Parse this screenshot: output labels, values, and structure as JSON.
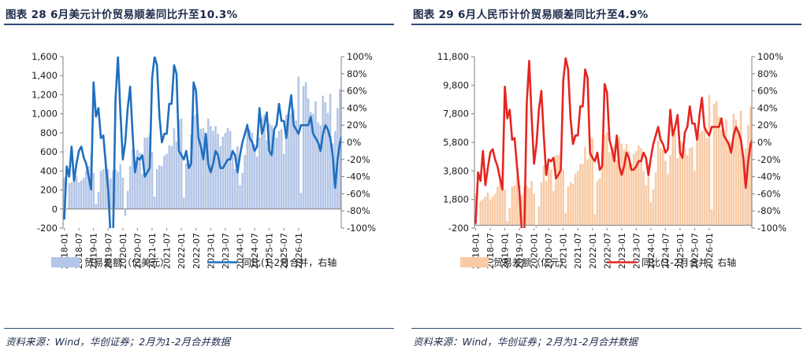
{
  "left": {
    "title": "图表 28 6月美元计价贸易顺差同比升至10.3%",
    "source": "资料来源：Wind，华创证券；2月为1-2月合并数据",
    "colors": {
      "bar": "#b4c6e7",
      "line": "#1f6fbf"
    }
  },
  "right": {
    "title": "图表 29 6月人民币计价贸易顺差同比升至4.9%",
    "source": "资料来源：Wind，华创证券；2月为1-2月合并数据",
    "colors": {
      "bar": "#f8cba6",
      "line": "#e52520"
    }
  },
  "chart_data": [
    {
      "type": "bar+line",
      "x_ticks": [
        "2018-01",
        "2018-07",
        "2019-01",
        "2019-07",
        "2020-01",
        "2020-07",
        "2021-01",
        "2021-07",
        "2022-01",
        "2022-07",
        "2023-01",
        "2023-07",
        "2024-01",
        "2024-07",
        "2025-01",
        "2025-07",
        "2026-01"
      ],
      "y_left": {
        "ticks": [
          "-200",
          "0",
          "200",
          "400",
          "600",
          "800",
          "1,000",
          "1,200",
          "1,400",
          "1,600"
        ],
        "range": [
          -200,
          1600
        ]
      },
      "y_right": {
        "ticks": [
          "-100%",
          "-80%",
          "-60%",
          "-40%",
          "-20%",
          "0%",
          "20%",
          "40%",
          "60%",
          "80%",
          "100%"
        ],
        "range": [
          -100,
          100
        ]
      },
      "series": [
        {
          "name": "贸易差额（亿美元）",
          "axis": "left",
          "kind": "bar",
          "values": [
            330,
            0,
            270,
            280,
            300,
            350,
            280,
            300,
            330,
            400,
            450,
            570,
            380,
            50,
            180,
            400,
            420,
            520,
            420,
            320,
            400,
            420,
            390,
            470,
            330,
            -70,
            190,
            450,
            630,
            470,
            620,
            590,
            370,
            750,
            750,
            780,
            600,
            130,
            420,
            460,
            450,
            560,
            580,
            670,
            660,
            850,
            710,
            940,
            950,
            120,
            480,
            510,
            780,
            980,
            1000,
            790,
            840,
            850,
            700,
            950,
            870,
            820,
            870,
            790,
            660,
            760,
            800,
            850,
            820,
            580,
            420,
            660,
            250,
            380,
            570,
            900,
            830,
            800,
            680,
            550,
            750,
            960,
            990,
            720,
            900,
            880,
            820,
            750,
            820,
            840,
            580,
            990,
            970,
            1000,
            1050,
            930,
            1390,
            170,
            1290,
            1330,
            1160,
            1020,
            1000,
            1130,
            910,
            880,
            1190,
            1120,
            1010,
            1210,
            690,
            820,
            1060,
            1260
          ]
        },
        {
          "name": "同比(1-2月合并，右轴",
          "axis": "right",
          "kind": "line",
          "values": [
            -90,
            -28,
            -40,
            -5,
            -45,
            -25,
            -10,
            -5,
            -18,
            -25,
            -40,
            -55,
            70,
            30,
            40,
            5,
            8,
            -25,
            -55,
            -110,
            -110,
            50,
            100,
            35,
            -20,
            0,
            40,
            65,
            10,
            -35,
            -18,
            -20,
            -15,
            -40,
            -35,
            -30,
            75,
            100,
            90,
            30,
            0,
            10,
            10,
            45,
            45,
            90,
            80,
            -10,
            -15,
            -20,
            -10,
            -30,
            -25,
            70,
            60,
            5,
            -5,
            -20,
            10,
            -25,
            -35,
            -25,
            -10,
            -15,
            -30,
            -30,
            -25,
            -20,
            -20,
            -10,
            -15,
            -35,
            -15,
            0,
            10,
            20,
            5,
            0,
            -10,
            -5,
            40,
            10,
            20,
            35,
            -10,
            -15,
            15,
            20,
            45,
            25,
            25,
            5,
            35,
            55,
            20,
            15,
            10,
            20,
            20,
            20,
            20,
            30,
            10,
            5,
            0,
            -10,
            10,
            20,
            15,
            5,
            -15,
            -53,
            -20,
            0,
            10
          ]
        }
      ],
      "legend_position": "bottom"
    },
    {
      "type": "bar+line",
      "x_ticks": [
        "2018-01",
        "2018-07",
        "2019-01",
        "2019-07",
        "2020-01",
        "2020-07",
        "2021-01",
        "2021-07",
        "2022-01",
        "2022-07",
        "2023-01",
        "2023-07",
        "2024-01",
        "2024-07",
        "2025-01",
        "2025-07",
        "2026-01"
      ],
      "y_left": {
        "ticks": [
          "-200",
          "1,800",
          "3,800",
          "5,800",
          "7,800",
          "9,800",
          "11,800"
        ],
        "range": [
          -200,
          11800
        ]
      },
      "y_right": {
        "ticks": [
          "-100%",
          "-80%",
          "-60%",
          "-40%",
          "-20%",
          "0%",
          "20%",
          "40%",
          "60%",
          "80%",
          "100%"
        ],
        "range": [
          -100,
          100
        ]
      },
      "series": [
        {
          "name": "贸易差额（亿元）",
          "axis": "left",
          "kind": "bar",
          "values": [
            2200,
            0,
            1700,
            1800,
            2000,
            2300,
            1800,
            2000,
            2200,
            2700,
            3000,
            3800,
            2500,
            300,
            1200,
            2700,
            2800,
            3500,
            2800,
            2100,
            2700,
            2800,
            2600,
            3100,
            2200,
            -450,
            1300,
            3000,
            4200,
            3100,
            4100,
            3900,
            2400,
            4900,
            4900,
            5100,
            3900,
            850,
            2700,
            3000,
            2900,
            3600,
            3800,
            4300,
            4300,
            5500,
            4600,
            6100,
            6100,
            780,
            3100,
            3300,
            5000,
            6300,
            6500,
            5100,
            5500,
            5500,
            4600,
            6200,
            5700,
            5300,
            5700,
            5200,
            4300,
            5000,
            5200,
            5600,
            5400,
            3800,
            2800,
            4300,
            1600,
            2500,
            3700,
            5900,
            5400,
            5300,
            4500,
            3600,
            4900,
            6300,
            6500,
            4700,
            5900,
            5800,
            5400,
            4900,
            5400,
            5500,
            3800,
            6500,
            6400,
            6600,
            6900,
            6100,
            9100,
            1100,
            8500,
            8700,
            7600,
            6700,
            6600,
            7400,
            6000,
            5800,
            7800,
            7400,
            6600,
            8000,
            4500,
            5400,
            7000,
            8300
          ]
        },
        {
          "name": "同比(1-2月合并，右轴",
          "axis": "right",
          "kind": "line",
          "values": [
            -95,
            -35,
            -45,
            -10,
            -50,
            -30,
            -12,
            -8,
            -20,
            -28,
            -42,
            -55,
            65,
            28,
            38,
            3,
            5,
            -28,
            -58,
            -105,
            -105,
            45,
            95,
            30,
            -25,
            -2,
            38,
            60,
            8,
            -38,
            -20,
            -22,
            -18,
            -42,
            -38,
            -32,
            72,
            98,
            85,
            28,
            -2,
            8,
            8,
            42,
            42,
            85,
            75,
            -12,
            -18,
            -22,
            -12,
            -32,
            -28,
            68,
            58,
            3,
            -8,
            -22,
            8,
            -28,
            -38,
            -28,
            -12,
            -18,
            -32,
            -32,
            -28,
            -22,
            -22,
            -12,
            -18,
            -38,
            -18,
            -2,
            8,
            18,
            3,
            -2,
            -12,
            -8,
            38,
            8,
            18,
            32,
            -12,
            -18,
            12,
            18,
            42,
            22,
            22,
            3,
            32,
            52,
            18,
            12,
            8,
            18,
            18,
            18,
            18,
            28,
            8,
            3,
            -2,
            -12,
            8,
            18,
            12,
            3,
            -18,
            -53,
            -22,
            -2,
            5
          ]
        }
      ],
      "legend_position": "bottom"
    }
  ]
}
